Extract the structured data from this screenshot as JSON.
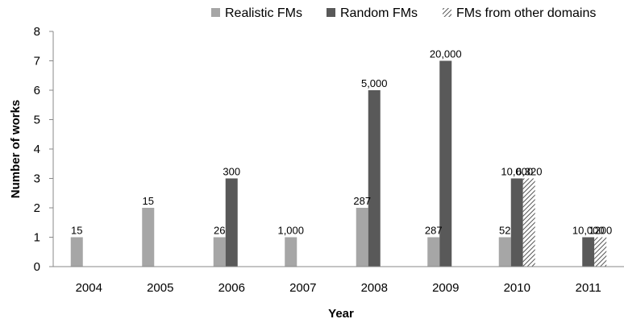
{
  "chart_data": {
    "type": "bar",
    "title": "",
    "xlabel": "Year",
    "ylabel": "Number of works",
    "ylim": [
      0,
      8
    ],
    "yticks": [
      "0",
      "1",
      "2",
      "3",
      "4",
      "5",
      "6",
      "7",
      "8"
    ],
    "grid": false,
    "legend_position": "top-right",
    "categories": [
      "2004",
      "2005",
      "2006",
      "2007",
      "2008",
      "2009",
      "2010",
      "2011"
    ],
    "series": [
      {
        "name": "Realistic FMs",
        "color": "#a6a6a6",
        "pattern": "solid",
        "values": [
          1,
          2,
          1,
          1,
          2,
          1,
          1,
          0
        ],
        "labels": [
          "15",
          "15",
          "26",
          "1,000",
          "287",
          "287",
          "52",
          ""
        ]
      },
      {
        "name": "Random FMs",
        "color": "#595959",
        "pattern": "solid",
        "values": [
          0,
          0,
          3,
          0,
          6,
          7,
          3,
          1
        ],
        "labels": [
          "",
          "",
          "300",
          "",
          "5,000",
          "20,000",
          "10,000",
          "10,000"
        ]
      },
      {
        "name": "FMs from other domains",
        "color": "#595959",
        "pattern": "diagonal-hatch",
        "values": [
          0,
          0,
          0,
          0,
          0,
          0,
          3,
          1
        ],
        "labels": [
          "",
          "",
          "",
          "",
          "",
          "",
          "6,320",
          "1200"
        ]
      }
    ]
  }
}
